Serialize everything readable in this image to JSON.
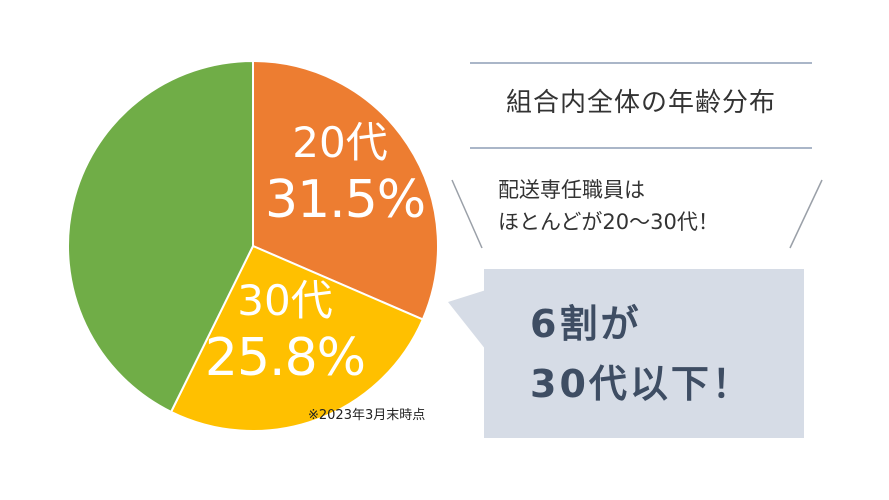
{
  "chart_data": {
    "type": "pie",
    "slices": [
      {
        "category": "20代",
        "value": 31.5,
        "value_label": "31.5%",
        "color": "#ed7d31"
      },
      {
        "category": "30代",
        "value": 25.8,
        "value_label": "25.8%",
        "color": "#ffc000"
      },
      {
        "category": "",
        "value": 42.7,
        "value_label": "",
        "color": "#70ad47"
      }
    ],
    "start_angle_deg": 0,
    "direction": "clockwise"
  },
  "note": "※2023年3月末時点",
  "panel": {
    "title": "組合内全体の年齢分布",
    "subtitle_line1": "配送専任職員は",
    "subtitle_line2": "ほとんどが20～30代！",
    "callout_line1": "6割が",
    "callout_line2": "30代以下！"
  },
  "colors": {
    "divider": "#aab6c8",
    "callout_bg": "#d6dce6",
    "callout_text": "#3e4d63"
  }
}
